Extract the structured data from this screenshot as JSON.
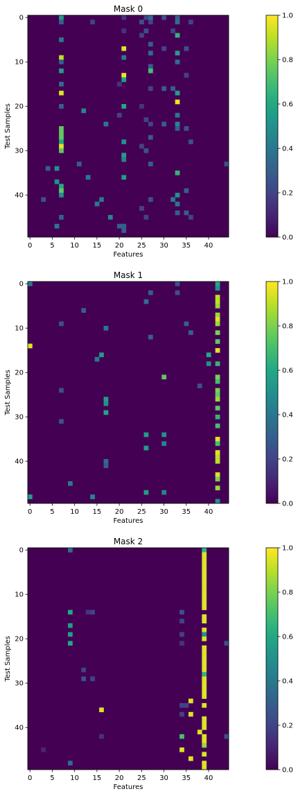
{
  "figure": {
    "colormap": "viridis",
    "background": "#ffffff"
  },
  "chart_data": [
    {
      "type": "heatmap",
      "title": "Mask 0",
      "xlabel": "Features",
      "ylabel": "Test Samples",
      "n_cols": 45,
      "n_rows": 50,
      "xticks": [
        0,
        5,
        10,
        15,
        20,
        25,
        30,
        35,
        40
      ],
      "yticks": [
        0,
        10,
        20,
        30,
        40
      ],
      "colorbar": {
        "ticks": [
          "0.0",
          "0.2",
          "0.4",
          "0.6",
          "0.8",
          "1.0"
        ],
        "range": [
          0,
          1
        ]
      },
      "cells": [
        [
          7,
          0,
          0.55
        ],
        [
          7,
          1,
          0.3
        ],
        [
          7,
          5,
          0.4
        ],
        [
          7,
          9,
          0.9
        ],
        [
          7,
          10,
          0.3
        ],
        [
          7,
          12,
          0.55
        ],
        [
          7,
          15,
          0.35
        ],
        [
          7,
          17,
          0.95
        ],
        [
          7,
          20,
          0.3
        ],
        [
          7,
          25,
          0.75
        ],
        [
          7,
          26,
          0.75
        ],
        [
          7,
          27,
          0.75
        ],
        [
          7,
          28,
          0.6
        ],
        [
          7,
          29,
          0.95
        ],
        [
          7,
          30,
          0.75
        ],
        [
          7,
          38,
          0.6
        ],
        [
          7,
          39,
          0.75
        ],
        [
          7,
          40,
          0.5
        ],
        [
          7,
          45,
          0.3
        ],
        [
          6,
          34,
          0.5
        ],
        [
          6,
          37,
          0.5
        ],
        [
          6,
          47,
          0.4
        ],
        [
          21,
          0,
          0.15
        ],
        [
          21,
          3,
          0.15
        ],
        [
          21,
          7,
          0.95
        ],
        [
          21,
          9,
          0.4
        ],
        [
          21,
          13,
          0.97
        ],
        [
          21,
          14,
          0.55
        ],
        [
          21,
          20,
          0.6
        ],
        [
          21,
          28,
          0.5
        ],
        [
          21,
          31,
          0.55
        ],
        [
          21,
          32,
          0.45
        ],
        [
          21,
          36,
          0.55
        ],
        [
          21,
          47,
          0.3
        ],
        [
          21,
          48,
          0.3
        ],
        [
          20,
          15,
          0.15
        ],
        [
          20,
          22,
          0.2
        ],
        [
          27,
          0,
          0.35
        ],
        [
          27,
          1,
          0.2
        ],
        [
          27,
          6,
          0.3
        ],
        [
          27,
          8,
          0.35
        ],
        [
          27,
          11,
          0.3
        ],
        [
          27,
          12,
          0.7
        ],
        [
          27,
          16,
          0.2
        ],
        [
          27,
          24,
          0.2
        ],
        [
          27,
          27,
          0.3
        ],
        [
          27,
          33,
          0.3
        ],
        [
          27,
          41,
          0.25
        ],
        [
          26,
          0,
          0.2
        ],
        [
          26,
          3,
          0.25
        ],
        [
          26,
          23,
          0.2
        ],
        [
          26,
          30,
          0.25
        ],
        [
          26,
          45,
          0.2
        ],
        [
          25,
          1,
          0.25
        ],
        [
          25,
          4,
          0.2
        ],
        [
          25,
          20,
          0.15
        ],
        [
          25,
          29,
          0.2
        ],
        [
          25,
          43,
          0.2
        ],
        [
          33,
          0,
          0.3
        ],
        [
          33,
          1,
          0.35
        ],
        [
          33,
          4,
          0.65
        ],
        [
          33,
          8,
          0.55
        ],
        [
          33,
          10,
          0.35
        ],
        [
          33,
          17,
          0.55
        ],
        [
          33,
          19,
          0.97
        ],
        [
          33,
          22,
          0.4
        ],
        [
          33,
          24,
          0.45
        ],
        [
          33,
          25,
          0.3
        ],
        [
          33,
          35,
          0.65
        ],
        [
          33,
          40,
          0.5
        ],
        [
          33,
          42,
          0.4
        ],
        [
          33,
          44,
          0.3
        ],
        [
          32,
          3,
          0.2
        ],
        [
          32,
          16,
          0.3
        ],
        [
          32,
          41,
          0.4
        ],
        [
          30,
          0,
          0.25
        ],
        [
          30,
          7,
          0.2
        ],
        [
          30,
          16,
          0.3
        ],
        [
          30,
          24,
          0.3
        ],
        [
          35,
          7,
          0.25
        ],
        [
          35,
          13,
          0.2
        ],
        [
          35,
          25,
          0.25
        ],
        [
          35,
          39,
          0.3
        ],
        [
          35,
          44,
          0.3
        ],
        [
          36,
          1,
          0.2
        ],
        [
          36,
          28,
          0.25
        ],
        [
          36,
          45,
          0.2
        ],
        [
          12,
          21,
          0.45
        ],
        [
          13,
          36,
          0.4
        ],
        [
          15,
          42,
          0.4
        ],
        [
          16,
          41,
          0.4
        ],
        [
          18,
          45,
          0.45
        ],
        [
          17,
          24,
          0.4
        ],
        [
          20,
          47,
          0.3
        ],
        [
          11,
          33,
          0.3
        ],
        [
          4,
          34,
          0.3
        ],
        [
          3,
          41,
          0.25
        ],
        [
          44,
          33,
          0.25
        ],
        [
          14,
          1,
          0.2
        ]
      ]
    },
    {
      "type": "heatmap",
      "title": "Mask 1",
      "xlabel": "Features",
      "ylabel": "Test Samples",
      "n_cols": 45,
      "n_rows": 50,
      "xticks": [
        0,
        5,
        10,
        15,
        20,
        25,
        30,
        35,
        40
      ],
      "yticks": [
        0,
        10,
        20,
        30,
        40
      ],
      "colorbar": {
        "ticks": [
          "0.0",
          "0.2",
          "0.4",
          "0.6",
          "0.8",
          "1.0"
        ],
        "range": [
          0,
          1
        ]
      },
      "cells": [
        [
          42,
          0,
          0.6
        ],
        [
          42,
          1,
          0.5
        ],
        [
          42,
          3,
          0.9
        ],
        [
          42,
          4,
          0.9
        ],
        [
          42,
          5,
          0.85
        ],
        [
          42,
          7,
          0.85
        ],
        [
          42,
          8,
          0.95
        ],
        [
          42,
          9,
          0.85
        ],
        [
          42,
          11,
          0.8
        ],
        [
          42,
          13,
          0.75
        ],
        [
          42,
          15,
          0.95
        ],
        [
          42,
          18,
          0.65
        ],
        [
          42,
          21,
          0.8
        ],
        [
          42,
          22,
          0.7
        ],
        [
          42,
          24,
          0.8
        ],
        [
          42,
          25,
          0.75
        ],
        [
          42,
          26,
          0.85
        ],
        [
          42,
          28,
          0.75
        ],
        [
          42,
          30,
          0.65
        ],
        [
          42,
          32,
          0.7
        ],
        [
          42,
          35,
          0.95
        ],
        [
          42,
          36,
          0.7
        ],
        [
          42,
          38,
          0.95
        ],
        [
          42,
          39,
          0.9
        ],
        [
          42,
          40,
          0.9
        ],
        [
          42,
          43,
          0.95
        ],
        [
          42,
          44,
          0.8
        ],
        [
          42,
          46,
          0.85
        ],
        [
          42,
          49,
          0.5
        ],
        [
          0,
          0,
          0.4
        ],
        [
          0,
          14,
          0.95
        ],
        [
          0,
          48,
          0.55
        ],
        [
          17,
          10,
          0.4
        ],
        [
          17,
          26,
          0.55
        ],
        [
          17,
          27,
          0.5
        ],
        [
          17,
          29,
          0.6
        ],
        [
          17,
          40,
          0.35
        ],
        [
          17,
          41,
          0.3
        ],
        [
          16,
          16,
          0.55
        ],
        [
          15,
          17,
          0.4
        ],
        [
          26,
          4,
          0.35
        ],
        [
          26,
          34,
          0.55
        ],
        [
          26,
          37,
          0.55
        ],
        [
          26,
          47,
          0.55
        ],
        [
          30,
          21,
          0.75
        ],
        [
          30,
          34,
          0.5
        ],
        [
          30,
          36,
          0.45
        ],
        [
          30,
          47,
          0.45
        ],
        [
          40,
          16,
          0.6
        ],
        [
          40,
          18,
          0.5
        ],
        [
          14,
          48,
          0.45
        ],
        [
          9,
          45,
          0.4
        ],
        [
          7,
          9,
          0.25
        ],
        [
          7,
          24,
          0.25
        ],
        [
          7,
          31,
          0.25
        ],
        [
          12,
          6,
          0.3
        ],
        [
          35,
          9,
          0.3
        ],
        [
          36,
          11,
          0.3
        ],
        [
          27,
          2,
          0.3
        ],
        [
          27,
          12,
          0.3
        ],
        [
          33,
          2,
          0.25
        ],
        [
          33,
          0,
          0.25
        ],
        [
          38,
          23,
          0.25
        ]
      ]
    },
    {
      "type": "heatmap",
      "title": "Mask 2",
      "xlabel": "Features",
      "ylabel": "Test Samples",
      "n_cols": 45,
      "n_rows": 50,
      "xticks": [
        0,
        5,
        10,
        15,
        20,
        25,
        30,
        35,
        40
      ],
      "yticks": [
        0,
        10,
        20,
        30,
        40
      ],
      "colorbar": {
        "ticks": [
          "0.0",
          "0.2",
          "0.4",
          "0.6",
          "0.8",
          "1.0"
        ],
        "range": [
          0,
          1
        ]
      },
      "cells": [
        [
          39,
          0,
          0.65
        ],
        [
          39,
          1,
          0.95
        ],
        [
          39,
          2,
          0.95
        ],
        [
          39,
          3,
          0.95
        ],
        [
          39,
          4,
          0.95
        ],
        [
          39,
          5,
          0.95
        ],
        [
          39,
          6,
          0.95
        ],
        [
          39,
          7,
          0.95
        ],
        [
          39,
          8,
          0.95
        ],
        [
          39,
          9,
          0.95
        ],
        [
          39,
          10,
          0.95
        ],
        [
          39,
          11,
          0.95
        ],
        [
          39,
          12,
          0.95
        ],
        [
          39,
          13,
          0.95
        ],
        [
          39,
          15,
          0.95
        ],
        [
          39,
          16,
          0.95
        ],
        [
          39,
          18,
          0.95
        ],
        [
          39,
          19,
          0.5
        ],
        [
          39,
          20,
          0.95
        ],
        [
          39,
          22,
          0.95
        ],
        [
          39,
          23,
          0.95
        ],
        [
          39,
          24,
          0.95
        ],
        [
          39,
          25,
          0.95
        ],
        [
          39,
          26,
          0.95
        ],
        [
          39,
          27,
          0.95
        ],
        [
          39,
          28,
          0.65
        ],
        [
          39,
          29,
          0.95
        ],
        [
          39,
          30,
          0.95
        ],
        [
          39,
          31,
          0.95
        ],
        [
          39,
          32,
          0.95
        ],
        [
          39,
          33,
          0.95
        ],
        [
          39,
          35,
          0.95
        ],
        [
          39,
          38,
          0.95
        ],
        [
          39,
          39,
          0.95
        ],
        [
          39,
          40,
          0.95
        ],
        [
          39,
          42,
          0.95
        ],
        [
          39,
          43,
          0.95
        ],
        [
          39,
          44,
          0.85
        ],
        [
          39,
          46,
          0.95
        ],
        [
          39,
          48,
          0.95
        ],
        [
          39,
          49,
          0.95
        ],
        [
          9,
          0,
          0.35
        ],
        [
          9,
          14,
          0.6
        ],
        [
          9,
          17,
          0.55
        ],
        [
          9,
          19,
          0.55
        ],
        [
          9,
          21,
          0.6
        ],
        [
          9,
          48,
          0.35
        ],
        [
          16,
          36,
          0.95
        ],
        [
          36,
          34,
          0.95
        ],
        [
          36,
          37,
          0.95
        ],
        [
          38,
          41,
          0.95
        ],
        [
          34,
          42,
          0.7
        ],
        [
          34,
          45,
          0.95
        ],
        [
          36,
          47,
          0.95
        ],
        [
          12,
          27,
          0.2
        ],
        [
          12,
          29,
          0.25
        ],
        [
          14,
          29,
          0.2
        ],
        [
          14,
          14,
          0.2
        ],
        [
          13,
          14,
          0.15
        ],
        [
          34,
          14,
          0.25
        ],
        [
          34,
          16,
          0.2
        ],
        [
          34,
          19,
          0.2
        ],
        [
          34,
          21,
          0.15
        ],
        [
          34,
          35,
          0.2
        ],
        [
          34,
          37,
          0.2
        ],
        [
          35,
          35,
          0.2
        ],
        [
          44,
          21,
          0.25
        ],
        [
          44,
          42,
          0.25
        ],
        [
          16,
          42,
          0.15
        ],
        [
          3,
          45,
          0.1
        ]
      ]
    }
  ]
}
